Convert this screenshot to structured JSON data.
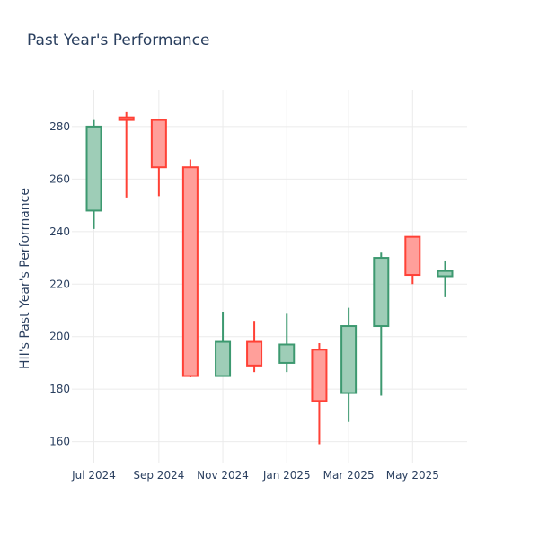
{
  "chart_data": {
    "type": "candlestick",
    "title": "Past Year's Performance",
    "xlabel": "",
    "ylabel": "HII's Past Year's Performance",
    "ylim": [
      152,
      294
    ],
    "yticks": [
      160,
      180,
      200,
      220,
      240,
      260,
      280
    ],
    "xticks": [
      {
        "date": "2024-07-01",
        "label": "Jul 2024"
      },
      {
        "date": "2024-09-01",
        "label": "Sep 2024"
      },
      {
        "date": "2024-11-01",
        "label": "Nov 2024"
      },
      {
        "date": "2025-01-01",
        "label": "Jan 2025"
      },
      {
        "date": "2025-03-01",
        "label": "Mar 2025"
      },
      {
        "date": "2025-05-01",
        "label": "May 2025"
      }
    ],
    "grid": true,
    "colors": {
      "increasing_line": "#3d9970",
      "increasing_fill": "#9ecdb7",
      "decreasing_line": "#ff4136",
      "decreasing_fill": "#ff9f9a"
    },
    "candles": [
      {
        "date": "2024-07-01",
        "open": 248,
        "high": 282.5,
        "low": 241,
        "close": 280
      },
      {
        "date": "2024-08-01",
        "open": 283.5,
        "high": 285.5,
        "low": 253,
        "close": 282.5
      },
      {
        "date": "2024-09-01",
        "open": 282.5,
        "high": 282.5,
        "low": 253.5,
        "close": 264.5
      },
      {
        "date": "2024-10-01",
        "open": 264.5,
        "high": 267.5,
        "low": 184.5,
        "close": 185
      },
      {
        "date": "2024-11-01",
        "open": 185,
        "high": 209.5,
        "low": 185,
        "close": 198
      },
      {
        "date": "2024-12-01",
        "open": 198,
        "high": 206,
        "low": 186.5,
        "close": 189
      },
      {
        "date": "2025-01-01",
        "open": 190,
        "high": 209,
        "low": 186.5,
        "close": 197
      },
      {
        "date": "2025-02-01",
        "open": 195,
        "high": 197.5,
        "low": 159,
        "close": 175.5
      },
      {
        "date": "2025-03-01",
        "open": 178.5,
        "high": 211,
        "low": 167.5,
        "close": 204
      },
      {
        "date": "2025-04-01",
        "open": 204,
        "high": 232,
        "low": 177.5,
        "close": 230
      },
      {
        "date": "2025-05-01",
        "open": 238,
        "high": 238,
        "low": 220,
        "close": 223.5
      },
      {
        "date": "2025-06-01",
        "open": 223,
        "high": 229,
        "low": 215,
        "close": 225
      }
    ]
  }
}
